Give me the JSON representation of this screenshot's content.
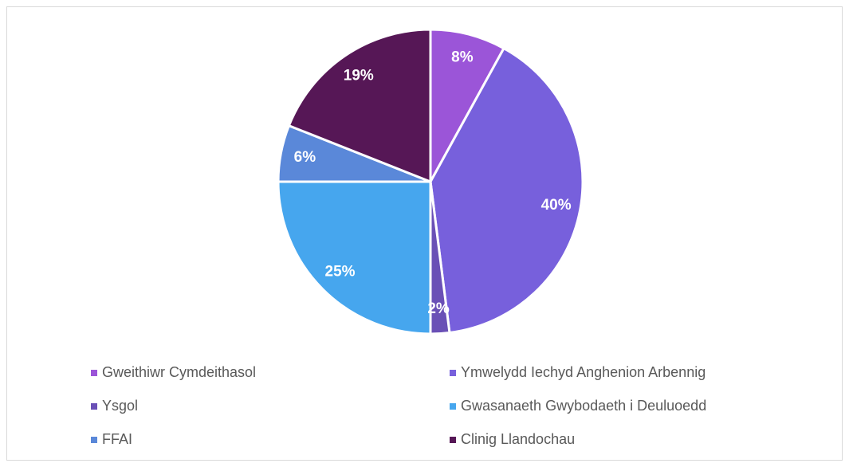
{
  "chart_data": {
    "type": "pie",
    "categories": [
      "Gweithiwr Cymdeithasol",
      "Ymwelydd Iechyd Anghenion Arbennig",
      "Ysgol",
      "Gwasanaeth Gwybodaeth i Deuluoedd",
      "FFAI",
      "Clinig Llandochau"
    ],
    "values": [
      8,
      40,
      2,
      25,
      6,
      19
    ],
    "value_labels": [
      "8%",
      "40%",
      "2%",
      "25%",
      "6%",
      "19%"
    ],
    "colors": [
      "#9b55d8",
      "#7760dc",
      "#6a50b6",
      "#46a6ee",
      "#5a88d9",
      "#561756"
    ]
  }
}
